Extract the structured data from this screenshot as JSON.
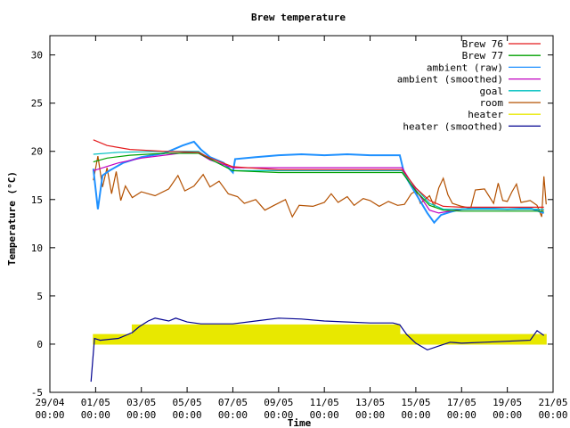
{
  "chart_data": {
    "type": "line",
    "title": "Brew temperature",
    "xlabel": "Time",
    "ylabel": "Temperature (°C)",
    "xlim": [
      "29/04 00:00",
      "21/05 00:00"
    ],
    "ylim": [
      -5,
      32
    ],
    "x_ticks": [
      {
        "date": "29/04",
        "time": "00:00",
        "day": 0
      },
      {
        "date": "01/05",
        "time": "00:00",
        "day": 2
      },
      {
        "date": "03/05",
        "time": "00:00",
        "day": 4
      },
      {
        "date": "05/05",
        "time": "00:00",
        "day": 6
      },
      {
        "date": "07/05",
        "time": "00:00",
        "day": 8
      },
      {
        "date": "09/05",
        "time": "00:00",
        "day": 10
      },
      {
        "date": "11/05",
        "time": "00:00",
        "day": 12
      },
      {
        "date": "13/05",
        "time": "00:00",
        "day": 14
      },
      {
        "date": "15/05",
        "time": "00:00",
        "day": 16
      },
      {
        "date": "17/05",
        "time": "00:00",
        "day": 18
      },
      {
        "date": "19/05",
        "time": "00:00",
        "day": 20
      },
      {
        "date": "21/05",
        "time": "00:00",
        "day": 22
      }
    ],
    "y_ticks": [
      -5,
      0,
      5,
      10,
      15,
      20,
      25,
      30
    ],
    "legend_position": "top-right",
    "grid": false,
    "series": [
      {
        "name": "Brew 76",
        "color": "#e41a1c",
        "values": [
          [
            1.9,
            21.2
          ],
          [
            2.5,
            20.6
          ],
          [
            3.5,
            20.2
          ],
          [
            5.0,
            20.0
          ],
          [
            6.5,
            19.9
          ],
          [
            7.0,
            19.3
          ],
          [
            8.0,
            18.4
          ],
          [
            10.0,
            18.1
          ],
          [
            12.0,
            18.1
          ],
          [
            14.0,
            18.1
          ],
          [
            15.4,
            18.1
          ],
          [
            16.0,
            16.2
          ],
          [
            16.6,
            14.9
          ],
          [
            17.2,
            14.3
          ],
          [
            18.0,
            14.2
          ],
          [
            20.0,
            14.2
          ],
          [
            21.6,
            14.2
          ]
        ]
      },
      {
        "name": "Brew 77",
        "color": "#00a000",
        "values": [
          [
            1.9,
            18.9
          ],
          [
            2.5,
            19.3
          ],
          [
            3.5,
            19.6
          ],
          [
            5.0,
            19.8
          ],
          [
            6.5,
            19.8
          ],
          [
            7.0,
            19.2
          ],
          [
            8.0,
            18.0
          ],
          [
            10.0,
            17.8
          ],
          [
            12.0,
            17.8
          ],
          [
            14.0,
            17.8
          ],
          [
            15.4,
            17.8
          ],
          [
            16.0,
            15.9
          ],
          [
            16.6,
            14.4
          ],
          [
            17.2,
            13.9
          ],
          [
            18.0,
            13.8
          ],
          [
            20.0,
            13.8
          ],
          [
            21.6,
            13.8
          ]
        ]
      },
      {
        "name": "ambient (raw)",
        "color": "#1e90ff",
        "values": [
          [
            1.9,
            18.2
          ],
          [
            2.1,
            14.0
          ],
          [
            2.3,
            17.5
          ],
          [
            2.6,
            18.0
          ],
          [
            3.2,
            18.8
          ],
          [
            4.0,
            19.4
          ],
          [
            5.0,
            19.8
          ],
          [
            5.8,
            20.6
          ],
          [
            6.3,
            21.0
          ],
          [
            6.6,
            20.2
          ],
          [
            7.0,
            19.4
          ],
          [
            7.6,
            18.8
          ],
          [
            8.0,
            17.8
          ],
          [
            8.1,
            19.2
          ],
          [
            9.0,
            19.4
          ],
          [
            10.0,
            19.6
          ],
          [
            11.0,
            19.7
          ],
          [
            12.0,
            19.6
          ],
          [
            13.0,
            19.7
          ],
          [
            14.0,
            19.6
          ],
          [
            15.3,
            19.6
          ],
          [
            15.5,
            17.6
          ],
          [
            16.0,
            15.6
          ],
          [
            16.5,
            13.6
          ],
          [
            16.8,
            12.6
          ],
          [
            17.1,
            13.4
          ],
          [
            17.5,
            13.7
          ],
          [
            18.0,
            14.0
          ],
          [
            19.0,
            14.1
          ],
          [
            20.0,
            14.0
          ],
          [
            21.0,
            14.1
          ],
          [
            21.6,
            13.6
          ]
        ]
      },
      {
        "name": "ambient (smoothed)",
        "color": "#c000c0",
        "values": [
          [
            1.9,
            18.0
          ],
          [
            3.0,
            18.8
          ],
          [
            4.0,
            19.3
          ],
          [
            5.0,
            19.6
          ],
          [
            6.0,
            19.9
          ],
          [
            6.5,
            19.8
          ],
          [
            7.0,
            19.1
          ],
          [
            8.0,
            18.3
          ],
          [
            10.0,
            18.3
          ],
          [
            12.0,
            18.3
          ],
          [
            14.0,
            18.3
          ],
          [
            15.4,
            18.3
          ],
          [
            16.0,
            16.0
          ],
          [
            16.6,
            13.9
          ],
          [
            17.0,
            13.6
          ],
          [
            18.0,
            14.0
          ],
          [
            20.0,
            14.0
          ],
          [
            21.6,
            14.0
          ]
        ]
      },
      {
        "name": "goal",
        "color": "#00c0c0",
        "values": [
          [
            1.9,
            19.7
          ],
          [
            3.0,
            19.9
          ],
          [
            5.0,
            20.0
          ],
          [
            6.5,
            20.0
          ],
          [
            7.0,
            19.2
          ],
          [
            8.0,
            18.0
          ],
          [
            10.0,
            18.0
          ],
          [
            12.0,
            18.0
          ],
          [
            14.0,
            18.0
          ],
          [
            15.4,
            18.0
          ],
          [
            16.0,
            16.2
          ],
          [
            16.6,
            14.6
          ],
          [
            17.2,
            14.0
          ],
          [
            18.0,
            14.0
          ],
          [
            20.0,
            14.0
          ],
          [
            21.6,
            14.0
          ]
        ]
      },
      {
        "name": "room",
        "color": "#b35000",
        "values": [
          [
            1.9,
            17.0
          ],
          [
            2.1,
            19.5
          ],
          [
            2.3,
            16.3
          ],
          [
            2.5,
            18.3
          ],
          [
            2.7,
            15.6
          ],
          [
            2.9,
            17.9
          ],
          [
            3.1,
            14.9
          ],
          [
            3.3,
            16.4
          ],
          [
            3.6,
            15.2
          ],
          [
            4.0,
            15.8
          ],
          [
            4.6,
            15.4
          ],
          [
            5.2,
            16.1
          ],
          [
            5.6,
            17.5
          ],
          [
            5.9,
            15.9
          ],
          [
            6.3,
            16.4
          ],
          [
            6.7,
            17.6
          ],
          [
            7.0,
            16.3
          ],
          [
            7.4,
            16.9
          ],
          [
            7.8,
            15.6
          ],
          [
            8.2,
            15.3
          ],
          [
            8.5,
            14.6
          ],
          [
            9.0,
            15.0
          ],
          [
            9.4,
            13.9
          ],
          [
            9.8,
            14.4
          ],
          [
            10.3,
            15.0
          ],
          [
            10.6,
            13.2
          ],
          [
            10.9,
            14.4
          ],
          [
            11.5,
            14.3
          ],
          [
            12.0,
            14.7
          ],
          [
            12.3,
            15.6
          ],
          [
            12.6,
            14.7
          ],
          [
            13.0,
            15.3
          ],
          [
            13.3,
            14.4
          ],
          [
            13.7,
            15.1
          ],
          [
            14.0,
            14.9
          ],
          [
            14.4,
            14.3
          ],
          [
            14.8,
            14.8
          ],
          [
            15.2,
            14.4
          ],
          [
            15.5,
            14.5
          ],
          [
            15.8,
            15.6
          ],
          [
            16.0,
            15.9
          ],
          [
            16.2,
            14.6
          ],
          [
            16.6,
            15.4
          ],
          [
            16.8,
            14.3
          ],
          [
            17.0,
            16.2
          ],
          [
            17.2,
            17.2
          ],
          [
            17.4,
            15.5
          ],
          [
            17.6,
            14.6
          ],
          [
            18.0,
            14.3
          ],
          [
            18.4,
            14.1
          ],
          [
            18.6,
            16.0
          ],
          [
            19.0,
            16.1
          ],
          [
            19.4,
            14.6
          ],
          [
            19.6,
            16.7
          ],
          [
            19.8,
            14.9
          ],
          [
            20.0,
            14.8
          ],
          [
            20.2,
            15.8
          ],
          [
            20.4,
            16.6
          ],
          [
            20.6,
            14.7
          ],
          [
            21.0,
            14.9
          ],
          [
            21.3,
            14.4
          ],
          [
            21.5,
            13.2
          ],
          [
            21.6,
            17.4
          ],
          [
            21.7,
            14.5
          ]
        ]
      },
      {
        "name": "heater",
        "color": "#e8e800",
        "values": [
          [
            1.9,
            1.0
          ],
          [
            3.6,
            1.0
          ],
          [
            3.6,
            2.0
          ],
          [
            15.3,
            2.0
          ],
          [
            15.3,
            1.0
          ],
          [
            21.7,
            1.0
          ]
        ]
      },
      {
        "name": "heater (smoothed)",
        "color": "#000090",
        "values": [
          [
            1.8,
            -3.9
          ],
          [
            1.95,
            0.6
          ],
          [
            2.2,
            0.4
          ],
          [
            3.0,
            0.6
          ],
          [
            3.6,
            1.2
          ],
          [
            3.9,
            1.8
          ],
          [
            4.3,
            2.4
          ],
          [
            4.6,
            2.7
          ],
          [
            5.2,
            2.4
          ],
          [
            5.5,
            2.7
          ],
          [
            6.0,
            2.3
          ],
          [
            6.6,
            2.1
          ],
          [
            7.3,
            2.1
          ],
          [
            8.0,
            2.1
          ],
          [
            9.0,
            2.4
          ],
          [
            10.0,
            2.7
          ],
          [
            11.0,
            2.6
          ],
          [
            12.0,
            2.4
          ],
          [
            13.0,
            2.3
          ],
          [
            14.0,
            2.2
          ],
          [
            15.0,
            2.2
          ],
          [
            15.3,
            2.0
          ],
          [
            15.6,
            1.0
          ],
          [
            16.0,
            0.1
          ],
          [
            16.5,
            -0.6
          ],
          [
            17.0,
            -0.2
          ],
          [
            17.5,
            0.2
          ],
          [
            18.0,
            0.1
          ],
          [
            19.0,
            0.2
          ],
          [
            20.0,
            0.3
          ],
          [
            21.0,
            0.4
          ],
          [
            21.3,
            1.4
          ],
          [
            21.6,
            0.9
          ]
        ]
      }
    ]
  }
}
